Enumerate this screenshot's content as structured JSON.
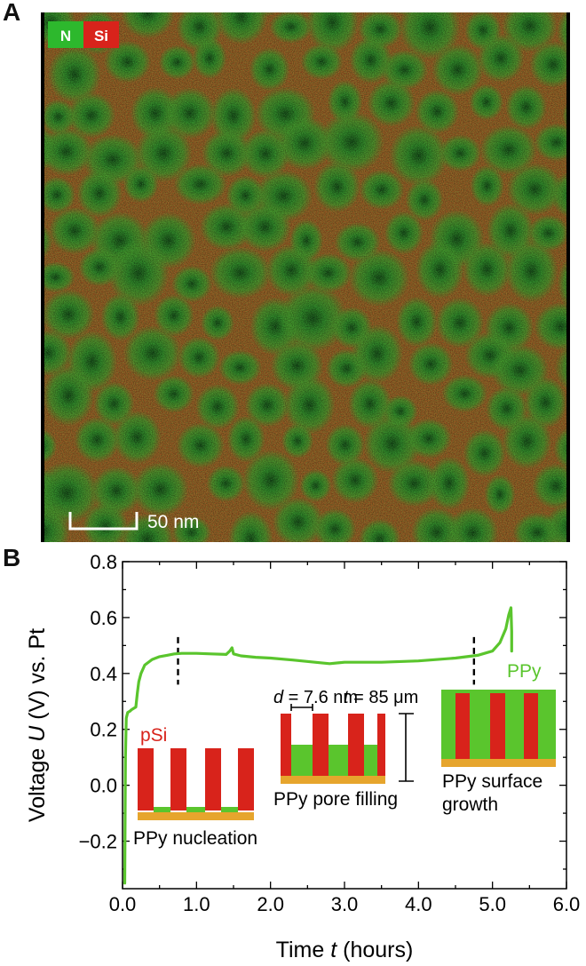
{
  "panel_a": {
    "label": "A",
    "legend": [
      {
        "text": "N",
        "color": "#2db82d"
      },
      {
        "text": "Si",
        "color": "#d8231b"
      }
    ],
    "scale_bar": "50 nm"
  },
  "panel_b": {
    "label": "B",
    "annotations": {
      "psi": "pSi",
      "ppy": "PPy",
      "stage1": "PPy nucleation",
      "stage2": "PPy pore filling",
      "stage3_line1": "PPy surface",
      "stage3_line2": "growth",
      "d_sym": "d",
      "d_val": " = 7.6 nm",
      "t_sym": "t",
      "t_val": " = 85 μm"
    },
    "colors": {
      "curve": "#5ac52d",
      "silicon": "#d8231b",
      "ppy": "#5ac52d",
      "substrate": "#e6a52d"
    }
  },
  "chart_data": {
    "type": "line",
    "xlabel_pre": "Time ",
    "xlabel_sym": "t",
    "xlabel_post": " (hours)",
    "ylabel_pre": "Voltage ",
    "ylabel_sym": "U",
    "ylabel_post": " (V) vs. Pt",
    "xlim": [
      0,
      6.0
    ],
    "ylim": [
      -0.37,
      0.8
    ],
    "xticks": [
      "0.0",
      "1.0",
      "2.0",
      "3.0",
      "4.0",
      "5.0",
      "6.0"
    ],
    "yticks": [
      "−0.2",
      "0.0",
      "0.2",
      "0.4",
      "0.6",
      "0.8"
    ],
    "series": [
      {
        "x": [
          0.03,
          0.04,
          0.05,
          0.07,
          0.1,
          0.12,
          0.15,
          0.18,
          0.2,
          0.22,
          0.25,
          0.3,
          0.4,
          0.5,
          0.6,
          0.7,
          0.8,
          1.0,
          1.2,
          1.4,
          1.45,
          1.48,
          1.5,
          1.6,
          1.8,
          2.0,
          2.3,
          2.6,
          2.8,
          3.0,
          3.5,
          4.0,
          4.5,
          4.8,
          5.0,
          5.1,
          5.18,
          5.22,
          5.25,
          5.26,
          5.26
        ],
        "values": [
          -0.35,
          0.1,
          0.24,
          0.26,
          0.265,
          0.27,
          0.275,
          0.28,
          0.33,
          0.37,
          0.4,
          0.43,
          0.45,
          0.46,
          0.465,
          0.47,
          0.472,
          0.472,
          0.47,
          0.468,
          0.48,
          0.492,
          0.47,
          0.463,
          0.458,
          0.455,
          0.448,
          0.44,
          0.435,
          0.44,
          0.44,
          0.445,
          0.455,
          0.465,
          0.48,
          0.51,
          0.56,
          0.61,
          0.635,
          0.55,
          0.48
        ]
      }
    ],
    "stage_markers_x": [
      0.75,
      4.75
    ],
    "grid": false
  }
}
